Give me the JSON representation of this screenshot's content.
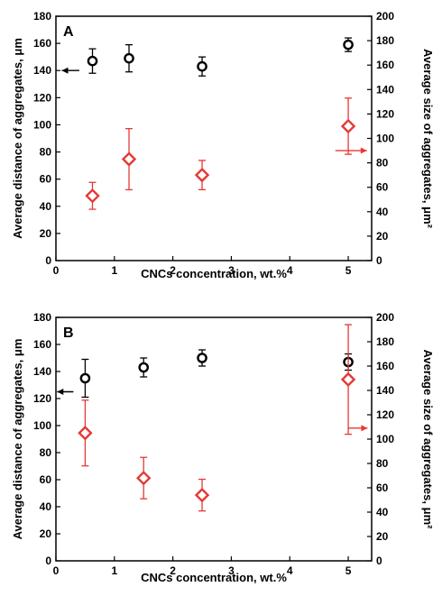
{
  "chart_data": [
    {
      "type": "scatter",
      "panel_label": "A",
      "xlabel": "CNCs concentration, wt.%",
      "ylabel": "Average distance of aggregates, μm",
      "y2label": "Average size of aggregates, μm²",
      "xlim": [
        0,
        5.4
      ],
      "xticks": [
        0,
        1,
        2,
        3,
        4,
        5
      ],
      "ylim": [
        0,
        180
      ],
      "yticks": [
        0,
        20,
        40,
        60,
        80,
        100,
        120,
        140,
        160,
        180
      ],
      "y2lim": [
        0,
        200
      ],
      "y2ticks": [
        0,
        20,
        40,
        60,
        80,
        100,
        120,
        140,
        160,
        180,
        200
      ],
      "series": [
        {
          "axis": "left",
          "marker": "circle",
          "color": "#000000",
          "x": [
            0.625,
            1.25,
            2.5,
            5.0
          ],
          "y": [
            147,
            149,
            143,
            159
          ],
          "err": [
            9,
            10,
            7,
            5
          ],
          "arrow": {
            "direction": "left",
            "x_from": 0.4,
            "x_to": 0.1,
            "y": 140
          }
        },
        {
          "axis": "right",
          "marker": "diamond",
          "color": "#e53935",
          "x": [
            0.625,
            1.25,
            2.5,
            5.0
          ],
          "y": [
            53,
            83,
            70,
            110
          ],
          "err": [
            11,
            25,
            12,
            23
          ],
          "arrow": {
            "direction": "right",
            "x_from": 4.78,
            "x_to": 5.32,
            "y": 90
          }
        }
      ]
    },
    {
      "type": "scatter",
      "panel_label": "B",
      "xlabel": "CNCs concentration, wt.%",
      "ylabel": "Average distance of aggregates, μm",
      "y2label": "Average size of aggregates, μm²",
      "xlim": [
        0,
        5.4
      ],
      "xticks": [
        0,
        1,
        2,
        3,
        4,
        5
      ],
      "ylim": [
        0,
        180
      ],
      "yticks": [
        0,
        20,
        40,
        60,
        80,
        100,
        120,
        140,
        160,
        180
      ],
      "y2lim": [
        0,
        200
      ],
      "y2ticks": [
        0,
        20,
        40,
        60,
        80,
        100,
        120,
        140,
        160,
        180,
        200
      ],
      "series": [
        {
          "axis": "left",
          "marker": "circle",
          "color": "#000000",
          "x": [
            0.5,
            1.5,
            2.5,
            5.0
          ],
          "y": [
            135,
            143,
            150,
            147
          ],
          "err": [
            14,
            7,
            6,
            6
          ],
          "arrow": {
            "direction": "left",
            "x_from": 0.3,
            "x_to": 0.02,
            "y": 125
          }
        },
        {
          "axis": "right",
          "marker": "diamond",
          "color": "#e53935",
          "x": [
            0.5,
            1.5,
            2.5,
            5.0
          ],
          "y": [
            105,
            68,
            54,
            149
          ],
          "err": [
            27,
            17,
            13,
            45
          ],
          "arrow": {
            "direction": "right",
            "x_from": 5.0,
            "x_to": 5.33,
            "y": 109
          }
        }
      ]
    }
  ]
}
